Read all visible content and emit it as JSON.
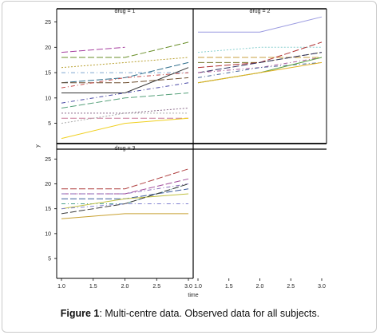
{
  "caption": {
    "label": "Figure 1",
    "text": ": Multi-centre data. Observed data for all subjects."
  },
  "chart_data": {
    "type": "line",
    "xlabel": "time",
    "ylabel": "y",
    "xlim": [
      1.0,
      3.0
    ],
    "ylim": [
      1,
      26.5
    ],
    "x_ticks": [
      "1.0",
      "1.5",
      "2.0",
      "2.5",
      "3.0"
    ],
    "y_ticks": [
      "5",
      "10",
      "15",
      "20",
      "25"
    ],
    "panels": [
      {
        "title": "drug = 1",
        "series": [
          {
            "color": "#a63f9f",
            "dash": "8,3",
            "values": [
              19,
              20,
              null
            ]
          },
          {
            "color": "#6a8f2a",
            "dash": "8,3",
            "values": [
              18,
              18,
              21
            ]
          },
          {
            "color": "#b8a030",
            "dash": "2,2",
            "values": [
              16,
              17,
              18
            ]
          },
          {
            "color": "#7fa8d0",
            "dash": "5,3,1,3",
            "values": [
              15,
              15,
              15
            ]
          },
          {
            "color": "#2b6b8a",
            "dash": "8,3",
            "values": [
              13,
              14,
              17
            ]
          },
          {
            "color": "#6d4d2d",
            "dash": "8,3",
            "values": [
              13,
              13,
              14
            ]
          },
          {
            "color": "#c44a4a",
            "dash": "5,3,1,3",
            "values": [
              12,
              14,
              15
            ]
          },
          {
            "color": "#333333",
            "dash": "",
            "values": [
              11,
              11,
              16
            ]
          },
          {
            "color": "#4a4aa6",
            "dash": "5,3,1,3",
            "values": [
              9,
              11,
              13
            ]
          },
          {
            "color": "#56a07a",
            "dash": "8,3",
            "values": [
              8,
              10,
              11
            ]
          },
          {
            "color": "#8a6a8a",
            "dash": "2,2",
            "values": [
              7,
              7,
              8
            ]
          },
          {
            "color": "#c87a9a",
            "dash": "8,3",
            "values": [
              6,
              6,
              6
            ]
          },
          {
            "color": "#aaaaaa",
            "dash": "2,2",
            "values": [
              5,
              7,
              7
            ]
          },
          {
            "color": "#f0d020",
            "dash": "",
            "values": [
              2,
              5,
              6
            ]
          }
        ]
      },
      {
        "title": "drug = 2",
        "series": [
          {
            "color": "#9a9ae0",
            "dash": "",
            "values": [
              23,
              23,
              26
            ]
          },
          {
            "color": "#8ad0d0",
            "dash": "2,2",
            "values": [
              19,
              20,
              20
            ]
          },
          {
            "color": "#c8a040",
            "dash": "8,3",
            "values": [
              18,
              18,
              18
            ]
          },
          {
            "color": "#7a7a30",
            "dash": "8,3",
            "values": [
              17,
              17,
              19
            ]
          },
          {
            "color": "#b03030",
            "dash": "8,3",
            "values": [
              16,
              17,
              21
            ]
          },
          {
            "color": "#303060",
            "dash": "8,3",
            "values": [
              15,
              17,
              19
            ]
          },
          {
            "color": "#aa5a9a",
            "dash": "5,3,1,3",
            "values": [
              15,
              16,
              18
            ]
          },
          {
            "color": "#4a6a9a",
            "dash": "5,3,1,3",
            "values": [
              14,
              16,
              17
            ]
          },
          {
            "color": "#5aa040",
            "dash": "",
            "values": [
              13,
              15,
              18
            ]
          },
          {
            "color": "#e0b020",
            "dash": "",
            "values": [
              13,
              15,
              17
            ]
          }
        ]
      },
      {
        "title": "drug = 3",
        "series": [
          {
            "color": "#b04040",
            "dash": "8,3",
            "values": [
              19,
              19,
              23
            ]
          },
          {
            "color": "#a04a9a",
            "dash": "8,3",
            "values": [
              18,
              18,
              21
            ]
          },
          {
            "color": "#8a6aba",
            "dash": "5,3,1,3",
            "values": [
              18,
              18,
              20
            ]
          },
          {
            "color": "#3a5a9a",
            "dash": "8,3",
            "values": [
              17,
              17,
              19
            ]
          },
          {
            "color": "#4aa08a",
            "dash": "5,3,1,3",
            "values": [
              16,
              16,
              20
            ]
          },
          {
            "color": "#c0c040",
            "dash": "",
            "values": [
              15,
              17,
              18
            ]
          },
          {
            "color": "#3a3a3a",
            "dash": "8,3",
            "values": [
              14,
              16,
              20
            ]
          },
          {
            "color": "#8080d0",
            "dash": "5,3,1,3",
            "values": [
              15,
              16,
              16
            ]
          },
          {
            "color": "#c8a030",
            "dash": "",
            "values": [
              13,
              14,
              14
            ]
          }
        ]
      }
    ]
  }
}
